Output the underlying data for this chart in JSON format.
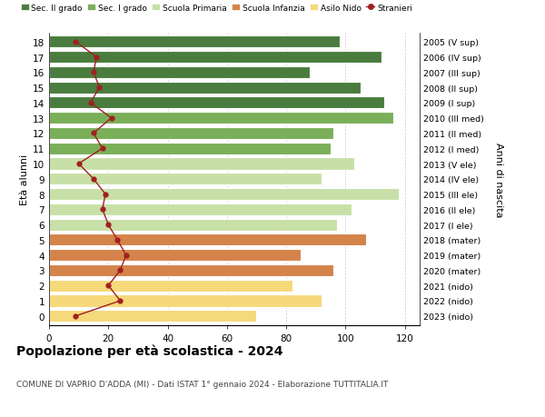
{
  "ages": [
    18,
    17,
    16,
    15,
    14,
    13,
    12,
    11,
    10,
    9,
    8,
    7,
    6,
    5,
    4,
    3,
    2,
    1,
    0
  ],
  "years": [
    "2005 (V sup)",
    "2006 (IV sup)",
    "2007 (III sup)",
    "2008 (II sup)",
    "2009 (I sup)",
    "2010 (III med)",
    "2011 (II med)",
    "2012 (I med)",
    "2013 (V ele)",
    "2014 (IV ele)",
    "2015 (III ele)",
    "2016 (II ele)",
    "2017 (I ele)",
    "2018 (mater)",
    "2019 (mater)",
    "2020 (mater)",
    "2021 (nido)",
    "2022 (nido)",
    "2023 (nido)"
  ],
  "bar_values": [
    98,
    112,
    88,
    105,
    113,
    116,
    96,
    95,
    103,
    92,
    118,
    102,
    97,
    107,
    85,
    96,
    82,
    92,
    70
  ],
  "bar_colors": [
    "#4a7c3f",
    "#4a7c3f",
    "#4a7c3f",
    "#4a7c3f",
    "#4a7c3f",
    "#7aaf5a",
    "#7aaf5a",
    "#7aaf5a",
    "#c8e0a8",
    "#c8e0a8",
    "#c8e0a8",
    "#c8e0a8",
    "#c8e0a8",
    "#d4834a",
    "#d4834a",
    "#d4834a",
    "#f5d97a",
    "#f5d97a",
    "#f5d97a"
  ],
  "stranieri_values": [
    9,
    16,
    15,
    17,
    14,
    21,
    15,
    18,
    10,
    15,
    19,
    18,
    20,
    23,
    26,
    24,
    20,
    24,
    9
  ],
  "stranieri_color": "#a02020",
  "title": "Popolazione per età scolastica - 2024",
  "subtitle": "COMUNE DI VAPRIO D'ADDA (MI) - Dati ISTAT 1° gennaio 2024 - Elaborazione TUTTITALIA.IT",
  "ylabel": "Età alunni",
  "ylabel2": "Anni di nascita",
  "xlim": [
    0,
    125
  ],
  "xticks": [
    0,
    20,
    40,
    60,
    80,
    100,
    120
  ],
  "legend_labels": [
    "Sec. II grado",
    "Sec. I grado",
    "Scuola Primaria",
    "Scuola Infanzia",
    "Asilo Nido",
    "Stranieri"
  ],
  "legend_colors": [
    "#4a7c3f",
    "#7aaf5a",
    "#c8e0a8",
    "#d4834a",
    "#f5d97a",
    "#a02020"
  ],
  "bg_color": "#ffffff",
  "bar_height": 0.78
}
